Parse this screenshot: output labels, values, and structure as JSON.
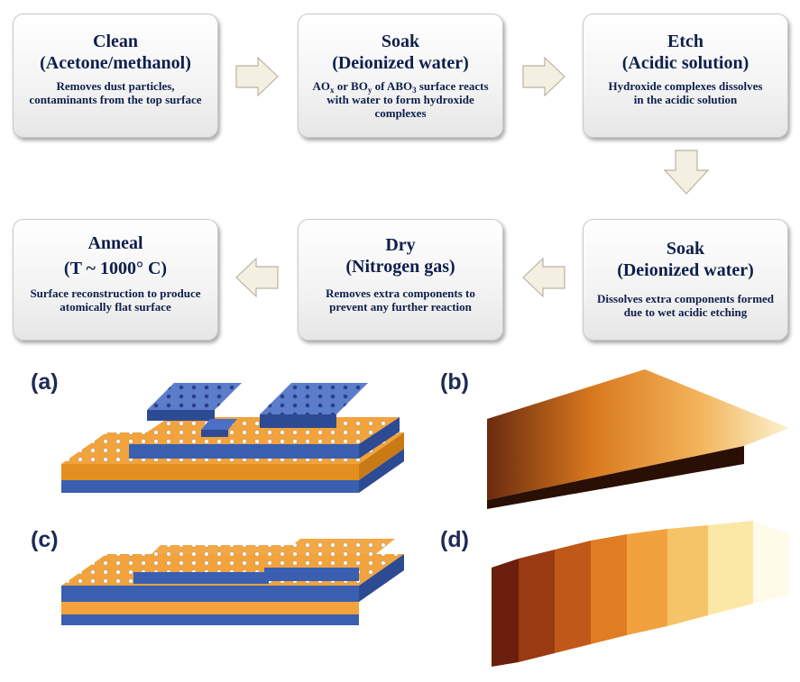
{
  "steps": {
    "clean": {
      "title": "Clean",
      "subtitle": "(Acetone/methanol)",
      "desc": "Removes dust particles, contaminants from the top surface"
    },
    "soak1": {
      "title": "Soak",
      "subtitle": "(Deionized water)",
      "d_ao": "AO",
      "d_x": "x",
      "d_or": " or BO",
      "d_y": "y",
      "d_of": " of ABO",
      "d_3": "3",
      "d_rest": " surface reacts with water to form hydroxide complexes"
    },
    "etch": {
      "title": "Etch",
      "subtitle": "(Acidic solution)",
      "desc": "Hydroxide complexes dissolves in the acidic solution"
    },
    "anneal": {
      "title": "Anneal",
      "subtitle": "(T ~ 1000° C)",
      "desc": "Surface reconstruction to produce atomically flat surface"
    },
    "dry": {
      "title": "Dry",
      "subtitle": "(Nitrogen gas)",
      "desc": "Removes extra components to prevent any further reaction"
    },
    "soak2": {
      "title": "Soak",
      "subtitle": "(Deionized water)",
      "desc": "Dissolves extra components formed due to wet acidic etching"
    }
  },
  "panels": {
    "a": "(a)",
    "b": "(b)",
    "c": "(c)",
    "d": "(d)"
  },
  "colors": {
    "box_text": "#0f1f4c",
    "orange": "#f2a33c",
    "blue": "#3b5fb0",
    "arrow_fill": "#f3f0e2"
  }
}
